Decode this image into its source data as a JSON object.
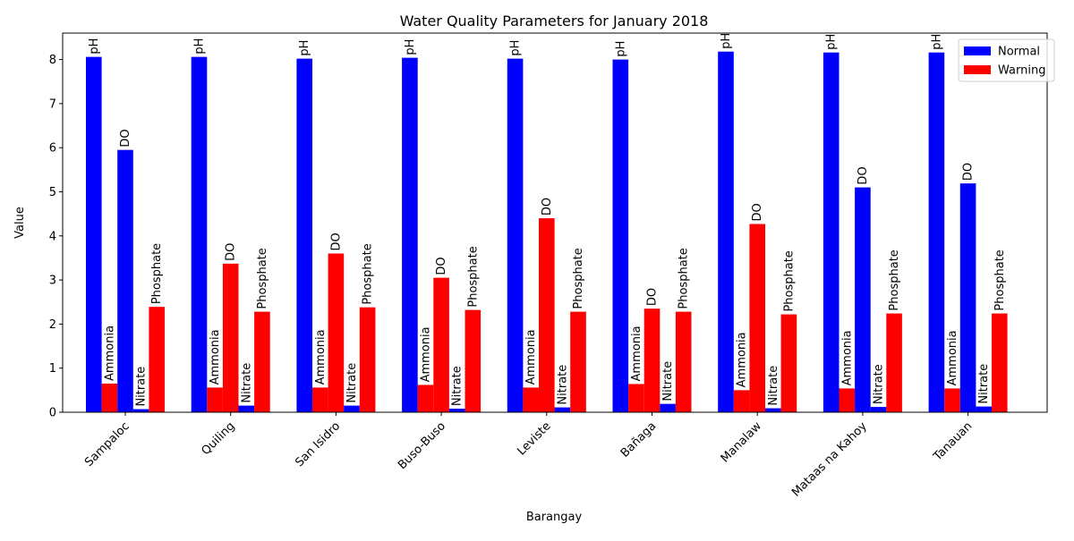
{
  "chart_data": {
    "type": "bar",
    "title": "Water Quality Parameters for January 2018",
    "xlabel": "Barangay",
    "ylabel": "Value",
    "ylim": [
      0,
      8.6
    ],
    "yticks": [
      0,
      1,
      2,
      3,
      4,
      5,
      6,
      7,
      8
    ],
    "grid": false,
    "legend_position": "top-right",
    "legend": [
      {
        "label": "Normal",
        "color": "#0000ff"
      },
      {
        "label": "Warning",
        "color": "#ff0000"
      }
    ],
    "colors": {
      "Normal": "#0000ff",
      "Warning": "#ff0000"
    },
    "parameters": [
      "pH",
      "Ammonia",
      "DO",
      "Nitrate",
      "Phosphate"
    ],
    "categories": [
      "Sampaloc",
      "Quiling",
      "San Isidro",
      "Buso-Buso",
      "Leviste",
      "Bañaga",
      "Manalaw",
      "Mataas na Kahoy",
      "Tanauan"
    ],
    "values": [
      [
        8.06,
        0.65,
        5.95,
        0.07,
        2.39
      ],
      [
        8.06,
        0.56,
        3.37,
        0.15,
        2.28
      ],
      [
        8.02,
        0.56,
        3.6,
        0.15,
        2.38
      ],
      [
        8.04,
        0.62,
        3.05,
        0.08,
        2.32
      ],
      [
        8.02,
        0.56,
        4.4,
        0.11,
        2.28
      ],
      [
        8.0,
        0.64,
        2.35,
        0.19,
        2.28
      ],
      [
        8.18,
        0.5,
        4.27,
        0.09,
        2.22
      ],
      [
        8.16,
        0.54,
        5.1,
        0.12,
        2.24
      ],
      [
        8.16,
        0.54,
        5.19,
        0.13,
        2.24
      ]
    ],
    "status": [
      [
        "Normal",
        "Warning",
        "Normal",
        "Normal",
        "Warning"
      ],
      [
        "Normal",
        "Warning",
        "Warning",
        "Normal",
        "Warning"
      ],
      [
        "Normal",
        "Warning",
        "Warning",
        "Normal",
        "Warning"
      ],
      [
        "Normal",
        "Warning",
        "Warning",
        "Normal",
        "Warning"
      ],
      [
        "Normal",
        "Warning",
        "Warning",
        "Normal",
        "Warning"
      ],
      [
        "Normal",
        "Warning",
        "Warning",
        "Normal",
        "Warning"
      ],
      [
        "Normal",
        "Warning",
        "Warning",
        "Normal",
        "Warning"
      ],
      [
        "Normal",
        "Warning",
        "Normal",
        "Normal",
        "Warning"
      ],
      [
        "Normal",
        "Warning",
        "Normal",
        "Normal",
        "Warning"
      ]
    ]
  }
}
